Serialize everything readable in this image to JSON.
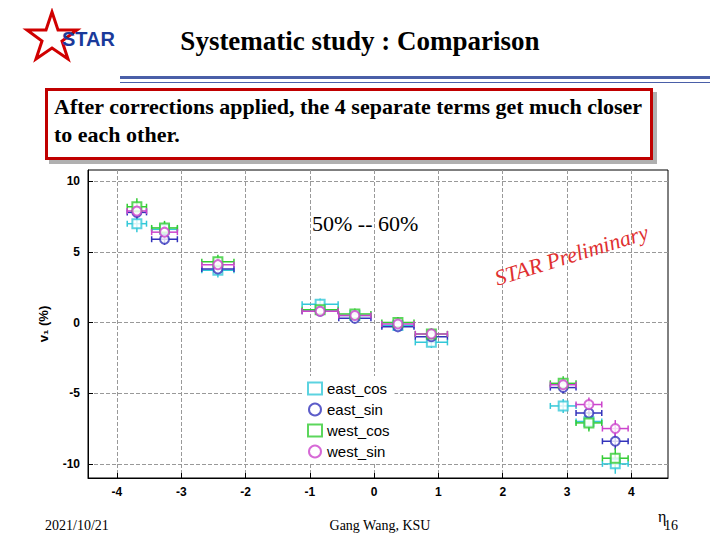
{
  "slide": {
    "title": "Systematic study : Comparison",
    "logo": "STAR",
    "note": "After corrections applied, the 4 separate terms get much closer to each other.",
    "date": "2021/10/21",
    "author": "Gang Wang, KSU",
    "page": "16"
  },
  "chart_data": {
    "type": "scatter",
    "x_label": "η",
    "y_label": "v₁ (%)",
    "xlim": [
      -4.45,
      4.57
    ],
    "ylim": [
      -11,
      10.8
    ],
    "xticks": [
      -4,
      -3,
      -2,
      -1,
      0,
      1,
      2,
      3,
      4
    ],
    "yticks": [
      -10,
      -5,
      0,
      5,
      10
    ],
    "grid": true,
    "legend": "lower center",
    "annotations": [
      "50% -- 60%",
      "STAR Preliminary"
    ],
    "series": [
      {
        "name": "east_cos",
        "color": "#33c8d8",
        "marker": "square",
        "x": [
          -3.69,
          -3.26,
          -2.43,
          -0.84,
          -0.3,
          0.37,
          0.89,
          2.94,
          3.34,
          3.75
        ],
        "values": [
          7.0,
          6.6,
          3.7,
          1.3,
          0.5,
          -0.2,
          -1.4,
          -5.9,
          -7.0,
          -10.0
        ],
        "xerr": [
          0.15,
          0.2,
          0.25,
          0.28,
          0.25,
          0.25,
          0.25,
          0.2,
          0.2,
          0.2
        ],
        "yerr": [
          0.6,
          0.5,
          0.5,
          0.4,
          0.4,
          0.4,
          0.4,
          0.5,
          0.6,
          0.7
        ]
      },
      {
        "name": "east_sin",
        "color": "#3333bb",
        "marker": "circle",
        "x": [
          -3.69,
          -3.26,
          -2.43,
          -0.84,
          -0.3,
          0.37,
          0.89,
          2.94,
          3.34,
          3.75
        ],
        "values": [
          7.8,
          5.9,
          3.8,
          0.8,
          0.3,
          -0.3,
          -1.0,
          -4.6,
          -6.4,
          -8.4
        ],
        "xerr": [
          0.15,
          0.2,
          0.25,
          0.28,
          0.25,
          0.25,
          0.25,
          0.2,
          0.2,
          0.2
        ],
        "yerr": [
          0.5,
          0.4,
          0.4,
          0.3,
          0.3,
          0.3,
          0.3,
          0.4,
          0.5,
          0.6
        ]
      },
      {
        "name": "west_cos",
        "color": "#33cc33",
        "marker": "square",
        "x": [
          -3.69,
          -3.26,
          -2.43,
          -0.84,
          -0.3,
          0.37,
          0.89,
          2.94,
          3.34,
          3.75
        ],
        "values": [
          8.2,
          6.7,
          4.3,
          0.9,
          0.6,
          0.0,
          -0.8,
          -4.3,
          -7.1,
          -9.6
        ],
        "xerr": [
          0.15,
          0.2,
          0.25,
          0.28,
          0.25,
          0.25,
          0.25,
          0.2,
          0.2,
          0.2
        ],
        "yerr": [
          0.6,
          0.5,
          0.5,
          0.4,
          0.4,
          0.4,
          0.4,
          0.5,
          0.6,
          0.7
        ]
      },
      {
        "name": "west_sin",
        "color": "#cc44cc",
        "marker": "circle",
        "x": [
          -3.69,
          -3.26,
          -2.43,
          -0.84,
          -0.3,
          0.37,
          0.89,
          2.94,
          3.34,
          3.75
        ],
        "values": [
          7.9,
          6.4,
          4.1,
          0.8,
          0.5,
          -0.1,
          -0.8,
          -4.4,
          -5.8,
          -7.5
        ],
        "xerr": [
          0.15,
          0.2,
          0.25,
          0.28,
          0.25,
          0.25,
          0.25,
          0.2,
          0.2,
          0.2
        ],
        "yerr": [
          0.5,
          0.4,
          0.4,
          0.3,
          0.3,
          0.3,
          0.3,
          0.4,
          0.5,
          0.6
        ]
      }
    ]
  }
}
